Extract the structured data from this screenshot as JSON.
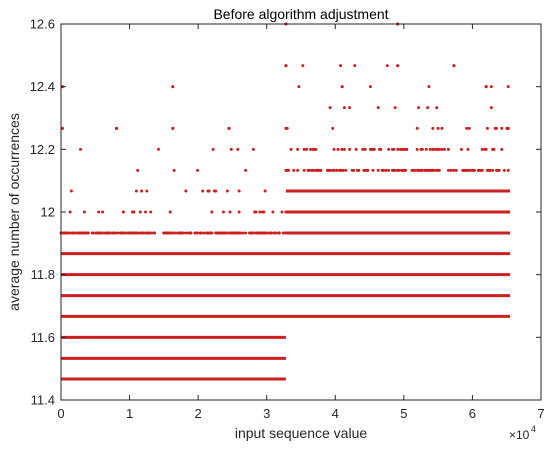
{
  "chart_data": {
    "type": "scatter",
    "title": "Before algorithm adjustment",
    "xlabel": "input sequence value",
    "ylabel": "average number of occurrences",
    "xlim": [
      0,
      7
    ],
    "ylim": [
      11.4,
      12.6
    ],
    "x_multiplier_label": "×10",
    "x_multiplier_exponent": "4",
    "x_ticks": [
      "0",
      "1",
      "2",
      "3",
      "4",
      "5",
      "6",
      "7"
    ],
    "y_ticks": [
      "11.4",
      "11.6",
      "11.8",
      "12",
      "12.2",
      "12.4",
      "12.6"
    ],
    "marker_color": "#cc1f1f",
    "box": true,
    "grid": false,
    "split_x": 3.28,
    "x_max": 6.55,
    "continuous_bands": [
      {
        "y": 11.467,
        "x_from": 0,
        "x_to": 3.28
      },
      {
        "y": 11.533,
        "x_from": 0,
        "x_to": 3.28
      },
      {
        "y": 11.6,
        "x_from": 0,
        "x_to": 3.28
      },
      {
        "y": 11.667,
        "x_from": 0,
        "x_to": 6.55
      },
      {
        "y": 11.733,
        "x_from": 0,
        "x_to": 6.55
      },
      {
        "y": 11.8,
        "x_from": 0,
        "x_to": 6.55
      },
      {
        "y": 11.867,
        "x_from": 0,
        "x_to": 6.55
      },
      {
        "y": 11.933,
        "x_from": 3.28,
        "x_to": 6.55
      },
      {
        "y": 12.0,
        "x_from": 3.28,
        "x_to": 6.55
      },
      {
        "y": 12.067,
        "x_from": 3.28,
        "x_to": 6.55
      }
    ],
    "sparse_levels": [
      {
        "y": 11.933,
        "x_from": 0,
        "x_to": 3.28,
        "density": 0.7
      },
      {
        "y": 12.0,
        "x_from": 0,
        "x_to": 3.28,
        "density": 0.12
      },
      {
        "y": 12.067,
        "x_from": 0,
        "x_to": 3.28,
        "density": 0.05
      },
      {
        "y": 12.133,
        "x_from": 0,
        "x_to": 3.28,
        "density": 0.03
      },
      {
        "y": 12.2,
        "x_from": 0,
        "x_to": 3.28,
        "density": 0.02
      },
      {
        "y": 12.133,
        "x_from": 3.28,
        "x_to": 6.55,
        "density": 0.55
      },
      {
        "y": 12.2,
        "x_from": 3.28,
        "x_to": 6.55,
        "density": 0.25
      },
      {
        "y": 12.267,
        "x_from": 3.28,
        "x_to": 6.55,
        "density": 0.09
      },
      {
        "y": 12.333,
        "x_from": 3.28,
        "x_to": 6.55,
        "density": 0.05
      },
      {
        "y": 12.4,
        "x_from": 3.28,
        "x_to": 6.55,
        "density": 0.025
      },
      {
        "y": 12.467,
        "x_from": 3.28,
        "x_to": 6.55,
        "density": 0.012
      }
    ],
    "outliers": [
      {
        "x": 0.02,
        "y": 12.4
      },
      {
        "x": 0.02,
        "y": 12.267
      },
      {
        "x": 0.81,
        "y": 12.267
      },
      {
        "x": 1.63,
        "y": 12.4
      },
      {
        "x": 1.63,
        "y": 12.267
      },
      {
        "x": 2.45,
        "y": 12.267
      },
      {
        "x": 3.28,
        "y": 12.6
      },
      {
        "x": 3.28,
        "y": 12.467
      },
      {
        "x": 4.1,
        "y": 12.4
      },
      {
        "x": 4.91,
        "y": 12.6
      },
      {
        "x": 4.91,
        "y": 12.467
      },
      {
        "x": 5.73,
        "y": 12.467
      },
      {
        "x": 6.2,
        "y": 12.4
      },
      {
        "x": 6.52,
        "y": 12.267
      }
    ]
  }
}
